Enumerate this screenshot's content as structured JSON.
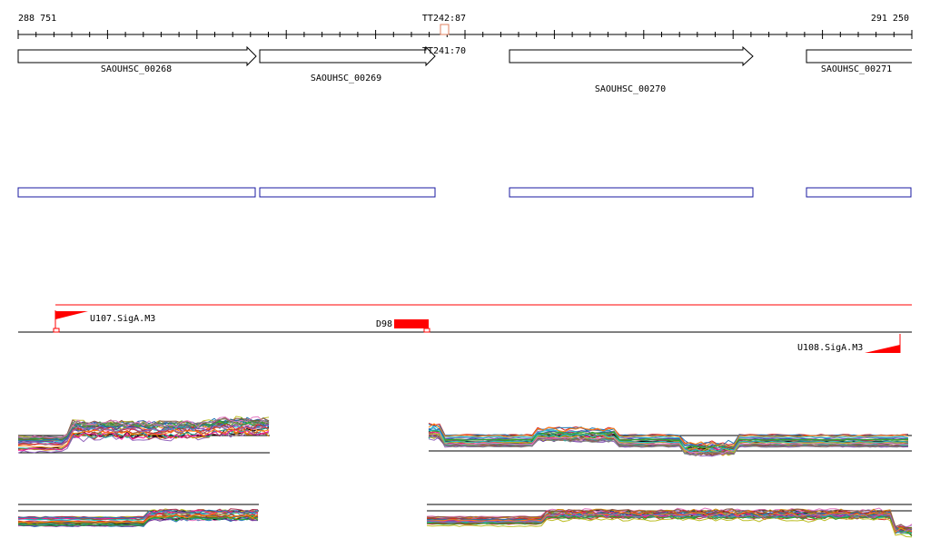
{
  "ruler": {
    "start_label": "288 751",
    "end_label": "291 250"
  },
  "terminators": [
    {
      "label": "TT242:87"
    },
    {
      "label": "TT241:70"
    }
  ],
  "genes": [
    {
      "name": "SAOUHSC_00268"
    },
    {
      "name": "SAOUHSC_00269"
    },
    {
      "name": "SAOUHSC_00270"
    },
    {
      "name": "SAOUHSC_00271"
    }
  ],
  "promoters": [
    {
      "label": "U107.SigA.M3"
    },
    {
      "label": "U108.SigA.M3"
    }
  ],
  "deletion": {
    "label": "D98"
  },
  "colors": {
    "gene_outline": "#000000",
    "cds_box": "#1a1aa0",
    "promoter": "#ff0000",
    "terminator": "#e08060"
  }
}
